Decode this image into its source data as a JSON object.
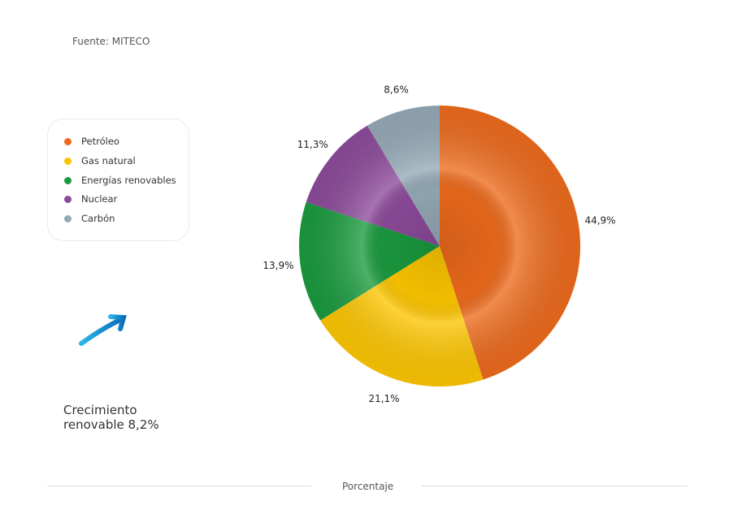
{
  "source": "Fuente: MITECO",
  "chart_data": {
    "type": "pie",
    "title": "",
    "xlabel": "Porcentaje",
    "legend_position": "left",
    "categories": [
      "Petróleo",
      "Gas natural",
      "Energías renovables",
      "Nuclear",
      "Carbón"
    ],
    "values": [
      44.9,
      21.1,
      13.9,
      11.3,
      8.6
    ],
    "labels": [
      "44,9%",
      "21,1%",
      "13,9%",
      "11,3%",
      "8,6%"
    ],
    "colors": [
      "#ec6a1c",
      "#fcc500",
      "#1a9a3e",
      "#8c4a9a",
      "#94a9b6"
    ]
  },
  "growth": {
    "line1": "Crecimiento",
    "line2": "renovable 8,2%"
  }
}
